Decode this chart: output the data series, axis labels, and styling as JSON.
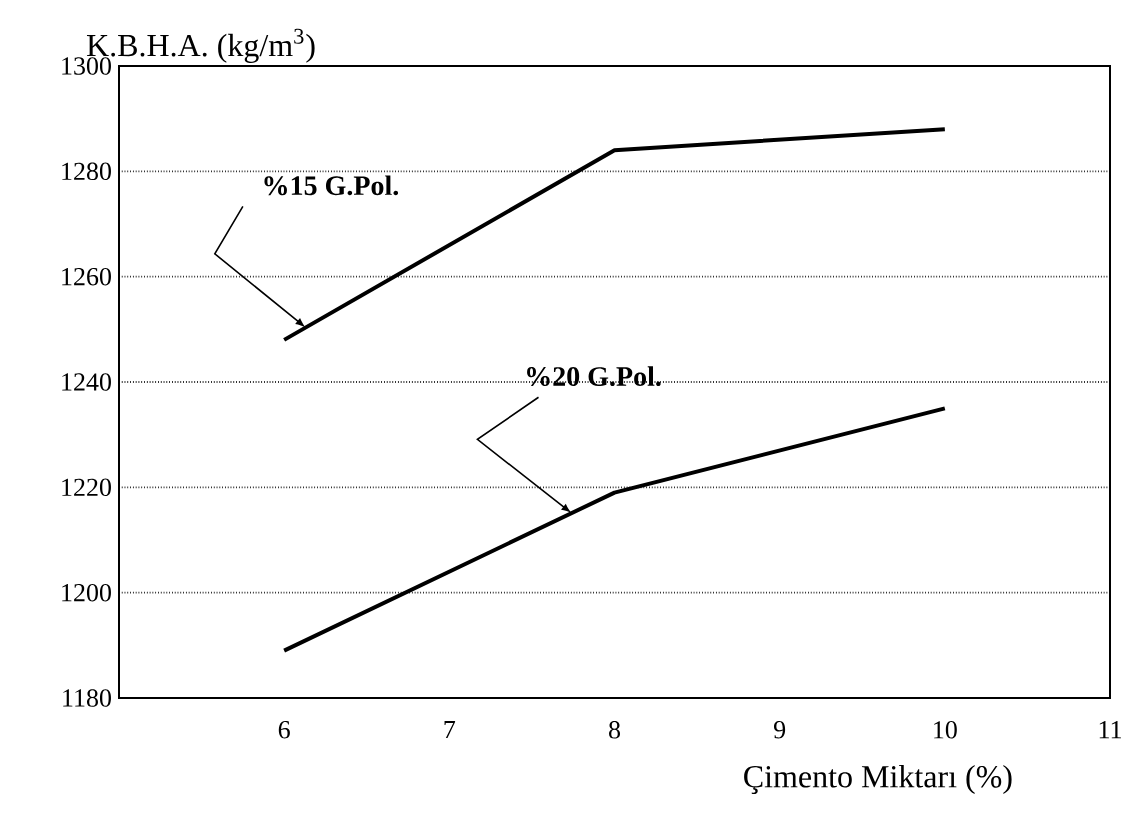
{
  "chart_data": {
    "type": "line",
    "xlabel": "Çimento Miktarı (%)",
    "ylabel": "K.B.H.A. (kg/m$^{3}$)",
    "x": [
      6,
      8,
      10
    ],
    "series": [
      {
        "name": "%15 G.Pol.",
        "color": "#000000",
        "values": [
          1248,
          1284,
          1288
        ]
      },
      {
        "name": "%20 G.Pol.",
        "color": "#000000",
        "values": [
          1189,
          1219,
          1235
        ]
      }
    ],
    "xlim": [
      5,
      11
    ],
    "ylim": [
      1180,
      1300
    ],
    "xticks": [
      6,
      7,
      8,
      9,
      10,
      11
    ],
    "yticks": [
      1180,
      1200,
      1220,
      1240,
      1260,
      1280,
      1300
    ],
    "grid": "y",
    "legend": false,
    "marker": "none",
    "line_style": "solid"
  }
}
